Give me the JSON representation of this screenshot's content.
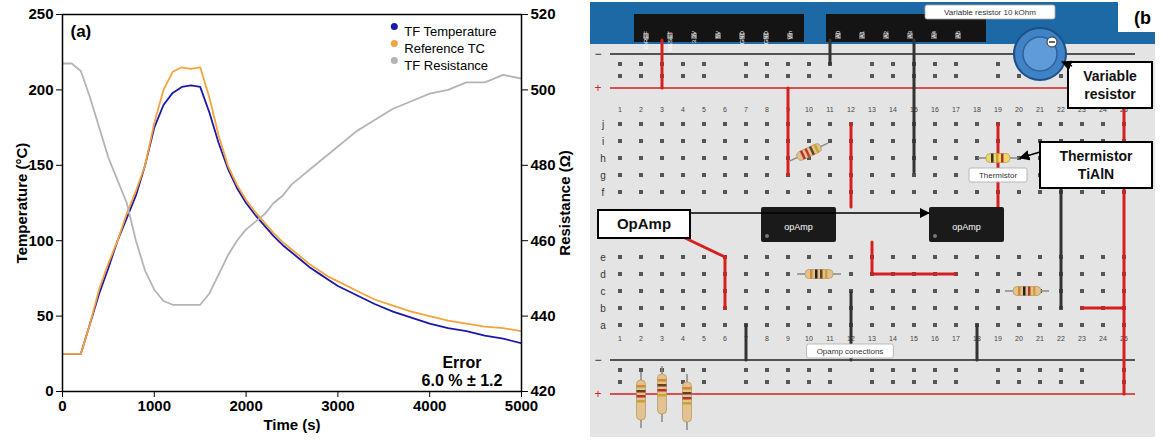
{
  "chart_data": {
    "type": "line",
    "title": "(a)",
    "xlabel": "Time (s)",
    "ylabel": "Temperature (°C)",
    "y2label": "Resistance (Ω)",
    "annotations": [
      "Error",
      "6.0 % ± 1.2"
    ],
    "x": [
      0,
      100,
      200,
      300,
      400,
      500,
      600,
      700,
      800,
      900,
      1000,
      1100,
      1200,
      1300,
      1400,
      1500,
      1600,
      1700,
      1800,
      1900,
      2000,
      2100,
      2200,
      2300,
      2400,
      2500,
      2600,
      2700,
      2800,
      2900,
      3000,
      3200,
      3400,
      3600,
      3800,
      4000,
      4200,
      4400,
      4600,
      4800,
      5000
    ],
    "series": [
      {
        "name": "TF Temperature",
        "color": "#1a1aa8",
        "values": [
          25,
          25,
          25,
          45,
          65,
          82,
          100,
          115,
          130,
          150,
          175,
          190,
          198,
          202,
          203,
          202,
          185,
          165,
          148,
          135,
          125,
          117,
          110,
          103,
          97,
          92,
          87,
          82,
          78,
          74,
          70,
          64,
          58,
          53,
          49,
          45,
          42,
          40,
          37,
          35,
          32
        ]
      },
      {
        "name": "Reference TC",
        "color": "#f5a33c",
        "values": [
          25,
          25,
          25,
          45,
          68,
          85,
          100,
          118,
          133,
          150,
          178,
          200,
          212,
          215,
          214,
          215,
          195,
          170,
          150,
          137,
          127,
          119,
          112,
          105,
          99,
          94,
          89,
          84,
          80,
          76,
          73,
          67,
          61,
          57,
          53,
          50,
          47,
          45,
          43,
          42,
          40
        ]
      },
      {
        "name": "TF Resistance",
        "color": "#b4b4b4",
        "axis": "y2",
        "values": [
          507,
          507,
          505,
          498,
          490,
          482,
          476,
          470,
          460,
          452,
          447,
          444,
          443,
          443,
          443,
          443,
          446,
          451,
          456,
          460,
          463,
          465,
          467,
          470,
          472,
          475,
          477,
          479,
          481,
          483,
          485,
          489,
          492,
          495,
          497,
          499,
          500,
          502,
          502,
          504,
          503
        ]
      }
    ],
    "xlim": [
      0,
      5000
    ],
    "xticks": [
      0,
      1000,
      2000,
      3000,
      4000,
      5000
    ],
    "ylim": [
      0,
      250
    ],
    "yticks": [
      0,
      50,
      100,
      150,
      200,
      250
    ],
    "y2lim": [
      420,
      520
    ],
    "y2ticks": [
      420,
      440,
      460,
      480,
      500,
      520
    ],
    "legend": "top-right",
    "grid": false
  },
  "diagram": {
    "letter": "(b",
    "pins": [
      "IOREF",
      "RESET",
      "3.3V",
      "5V",
      "GND",
      "GND",
      "Vin",
      "A0",
      "A1",
      "A2",
      "A3",
      "A4",
      "A5"
    ],
    "rows": [
      "j",
      "i",
      "h",
      "g",
      "f",
      "e",
      "d",
      "c",
      "b",
      "a"
    ],
    "columns": [
      1,
      2,
      3,
      4,
      5,
      6,
      7,
      8,
      9,
      10,
      11,
      12,
      13,
      14,
      15,
      16,
      17,
      18,
      19,
      20,
      21,
      22,
      23,
      24,
      25
    ],
    "rail_signs": [
      "−",
      "+"
    ],
    "chips": [
      "opAmp",
      "opAmp"
    ],
    "tags": [
      "Variable resistor 10 kOhm",
      "Thermistor",
      "Opamp conections"
    ],
    "callouts": [
      "Variable resistor",
      "OpAmp",
      "Thermistor TiAlN"
    ]
  }
}
